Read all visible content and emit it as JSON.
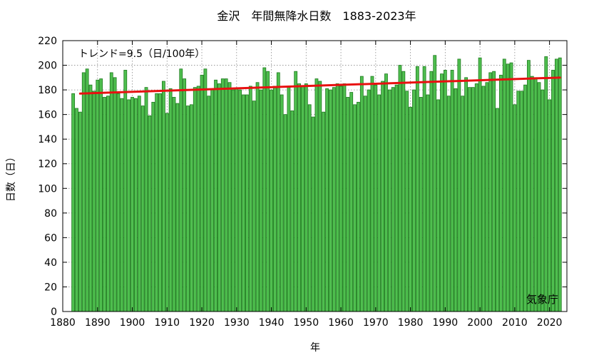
{
  "chart_data": {
    "type": "bar",
    "title": "金沢　年間無降水日数　1883-2023年",
    "xlabel": "年",
    "ylabel": "日数（日）",
    "annotation": "トレンド=9.5（日/100年）",
    "credit": "気象庁",
    "xlim": [
      1880,
      2025
    ],
    "ylim": [
      0,
      220
    ],
    "xticks": [
      "1880",
      "1890",
      "1900",
      "1910",
      "1920",
      "1930",
      "1940",
      "1950",
      "1960",
      "1970",
      "1980",
      "1990",
      "2000",
      "2010",
      "2020"
    ],
    "yticks": [
      "0",
      "20",
      "40",
      "60",
      "80",
      "100",
      "120",
      "140",
      "160",
      "180",
      "200",
      "220"
    ],
    "grid": true,
    "bar_color": "#4fbf4f",
    "trend_color": "#e81010",
    "trend": {
      "start": [
        1885,
        177
      ],
      "end": [
        2023,
        190
      ]
    },
    "start_year": 1883,
    "values": [
      177,
      165,
      162,
      194,
      197,
      184,
      179,
      188,
      189,
      174,
      175,
      194,
      190,
      177,
      173,
      196,
      172,
      174,
      173,
      175,
      167,
      182,
      159,
      170,
      177,
      177,
      187,
      161,
      181,
      174,
      169,
      197,
      189,
      167,
      168,
      182,
      183,
      192,
      197,
      175,
      180,
      188,
      185,
      189,
      189,
      186,
      180,
      181,
      180,
      176,
      176,
      183,
      171,
      186,
      180,
      198,
      195,
      180,
      183,
      194,
      176,
      160,
      182,
      163,
      195,
      185,
      183,
      185,
      168,
      158,
      189,
      187,
      162,
      181,
      180,
      182,
      185,
      183,
      185,
      174,
      178,
      168,
      170,
      191,
      175,
      180,
      191,
      184,
      176,
      187,
      193,
      180,
      182,
      184,
      200,
      195,
      179,
      166,
      180,
      199,
      174,
      199,
      176,
      195,
      208,
      172,
      193,
      196,
      175,
      196,
      181,
      205,
      175,
      190,
      182,
      182,
      185,
      206,
      183,
      186,
      194,
      195,
      165,
      192,
      205,
      201,
      202,
      168,
      179,
      179,
      184,
      204,
      191,
      190,
      186,
      180,
      207,
      172,
      196,
      205,
      206
    ]
  }
}
